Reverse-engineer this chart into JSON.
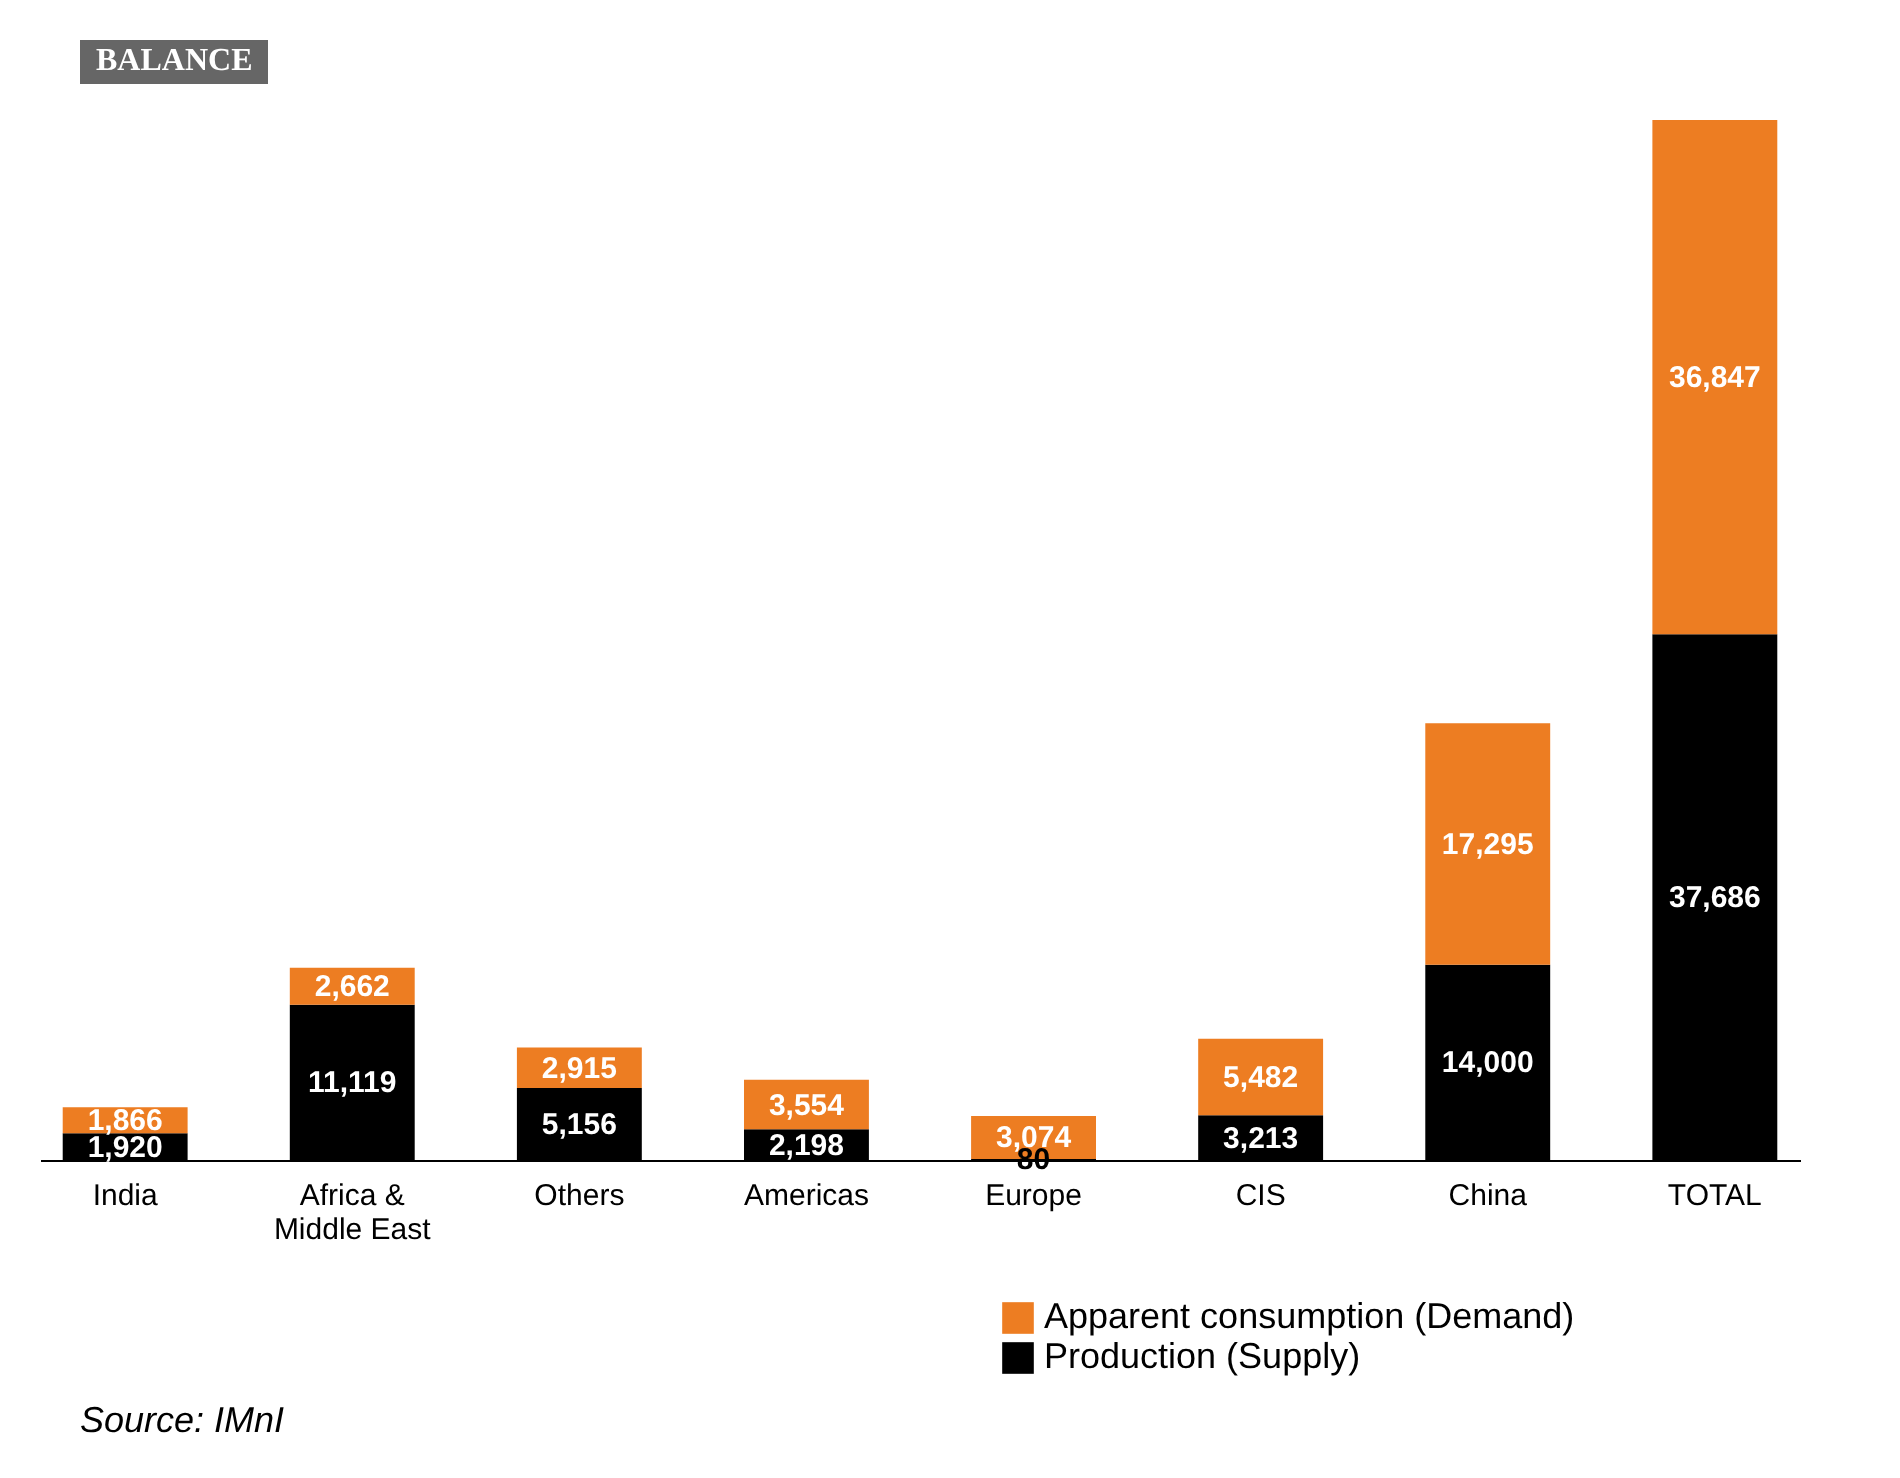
{
  "chart_data": {
    "type": "bar",
    "stacked": true,
    "tick_labels": "x",
    "legend": "bottom right",
    "categories": [
      "India",
      "Africa &\nMiddle East",
      "Others",
      "Americas",
      "Europe",
      "CIS",
      "China",
      "TOTAL"
    ],
    "series": [
      {
        "name": "Production (Supply)",
        "color": "#000000",
        "values": [
          1920,
          11119,
          5156,
          2198,
          80,
          3213,
          14000,
          37686
        ],
        "value_labels": [
          "1,920",
          "11,119",
          "5,156",
          "2,198",
          "80",
          "3,213",
          "14,000",
          "37,686"
        ]
      },
      {
        "name": "Apparent consumption (Demand)",
        "color": "#ed7d22",
        "values": [
          1866,
          2662,
          2915,
          3554,
          3074,
          5482,
          17295,
          36847
        ],
        "value_labels": [
          "1,866",
          "2,662",
          "2,915",
          "3,554",
          "3,074",
          "5,482",
          "17,295",
          "36,847"
        ]
      }
    ],
    "annotations": [
      "BALANCE",
      "Source: IMnI"
    ]
  }
}
